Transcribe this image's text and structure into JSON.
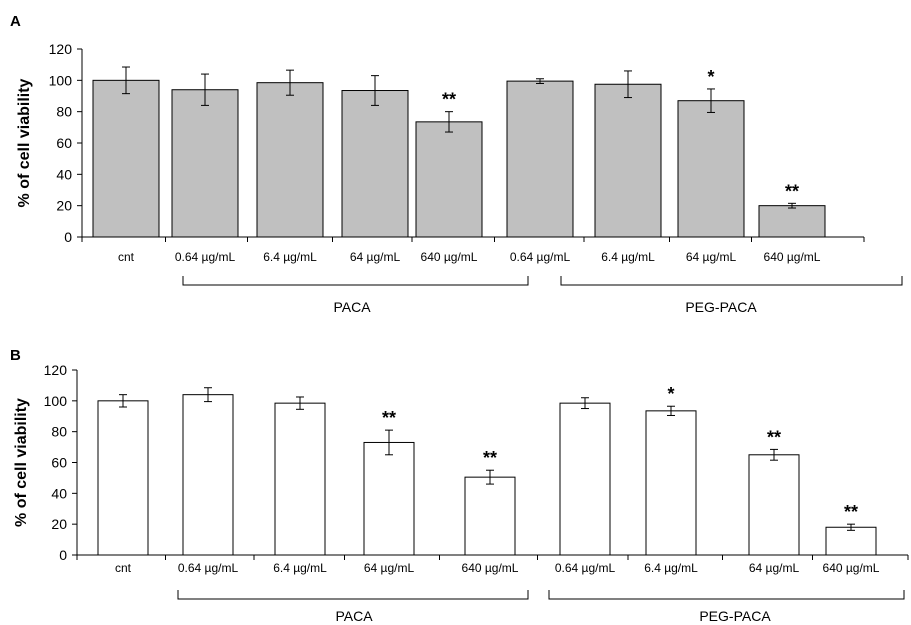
{
  "chart_data": [
    {
      "type": "bar",
      "panel": "A",
      "ylabel": "% of cell viability",
      "ylim": [
        0,
        120
      ],
      "yticks": [
        0,
        20,
        40,
        60,
        80,
        100,
        120
      ],
      "categories": [
        "cnt",
        "0.64 µg/mL",
        "6.4 µg/mL",
        "64 µg/mL",
        "640 µg/mL",
        "0.64 µg/mL",
        "6.4 µg/mL",
        "64 µg/mL",
        "640 µg/mL"
      ],
      "values": [
        100,
        94,
        98.5,
        93.5,
        73.5,
        99.5,
        97.5,
        87,
        20
      ],
      "errors": [
        8.5,
        10,
        8,
        9.5,
        6.5,
        1.5,
        8.5,
        7.5,
        1.5
      ],
      "significance": [
        "",
        "",
        "",
        "",
        "**",
        "",
        "",
        "*",
        "**"
      ],
      "bar_color": "#c0c0c0",
      "groups": [
        {
          "label": "PACA",
          "from": 1,
          "to": 4
        },
        {
          "label": "PEG-PACA",
          "from": 5,
          "to": 8
        }
      ]
    },
    {
      "type": "bar",
      "panel": "B",
      "ylabel": "% of cell viability",
      "ylim": [
        0,
        120
      ],
      "yticks": [
        0,
        20,
        40,
        60,
        80,
        100,
        120
      ],
      "categories": [
        "cnt",
        "0.64 µg/mL",
        "6.4 µg/mL",
        "64 µg/mL",
        "640 µg/mL",
        "0.64 µg/mL",
        "6.4 µg/mL",
        "64 µg/mL",
        "640 µg/mL"
      ],
      "values": [
        100,
        104,
        98.5,
        73,
        50.5,
        98.5,
        93.5,
        65,
        18
      ],
      "errors": [
        4,
        4.5,
        4,
        8,
        4.5,
        3.5,
        3,
        3.5,
        2
      ],
      "significance": [
        "",
        "",
        "",
        "**",
        "**",
        "",
        "*",
        "**",
        "**"
      ],
      "bar_color": "#ffffff",
      "groups": [
        {
          "label": "PACA",
          "from": 1,
          "to": 4
        },
        {
          "label": "PEG-PACA",
          "from": 5,
          "to": 8
        }
      ]
    }
  ]
}
